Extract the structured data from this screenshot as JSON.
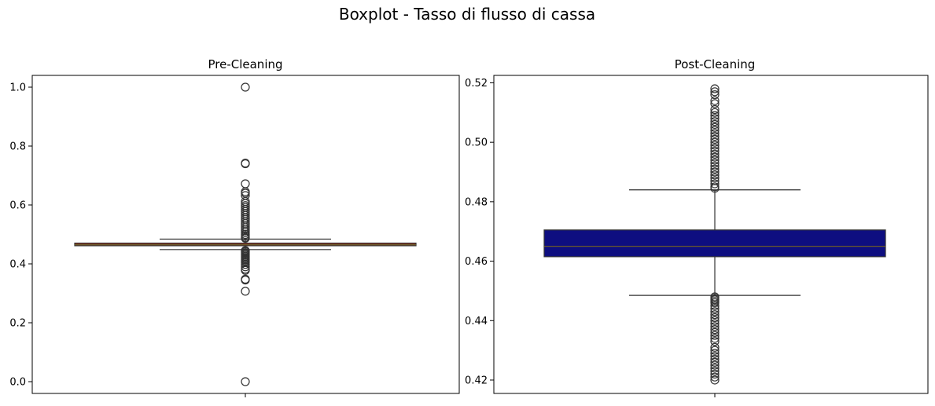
{
  "chart_data": [
    {
      "type": "boxplot",
      "title": "Pre-Cleaning",
      "ylim": [
        -0.04,
        1.04
      ],
      "yticks": [
        0.0,
        0.2,
        0.4,
        0.6,
        0.8,
        1.0
      ],
      "ytick_labels": [
        "0.0",
        "0.2",
        "0.4",
        "0.6",
        "0.8",
        "1.0"
      ],
      "box": {
        "q1": 0.4615,
        "median": 0.465,
        "q3": 0.4705,
        "whisker_low": 0.4485,
        "whisker_high": 0.484,
        "color": "#8b2d1c"
      },
      "outliers": [
        1.0,
        0.742,
        0.74,
        0.672,
        0.645,
        0.64,
        0.632,
        0.612,
        0.605,
        0.598,
        0.592,
        0.585,
        0.578,
        0.572,
        0.565,
        0.558,
        0.552,
        0.545,
        0.538,
        0.532,
        0.525,
        0.518,
        0.512,
        0.506,
        0.5,
        0.495,
        0.49,
        0.487,
        0.445,
        0.442,
        0.438,
        0.434,
        0.43,
        0.426,
        0.422,
        0.418,
        0.414,
        0.41,
        0.405,
        0.398,
        0.39,
        0.382,
        0.378,
        0.348,
        0.345,
        0.307,
        0.0
      ]
    },
    {
      "type": "boxplot",
      "title": "Post-Cleaning",
      "ylim": [
        0.4155,
        0.5225
      ],
      "yticks": [
        0.42,
        0.44,
        0.46,
        0.48,
        0.5,
        0.52
      ],
      "ytick_labels": [
        "0.42",
        "0.44",
        "0.46",
        "0.48",
        "0.50",
        "0.52"
      ],
      "box": {
        "q1": 0.4615,
        "median": 0.465,
        "q3": 0.4705,
        "whisker_low": 0.4485,
        "whisker_high": 0.484,
        "color": "#0e0e80"
      },
      "outliers": [
        0.518,
        0.517,
        0.516,
        0.514,
        0.513,
        0.511,
        0.51,
        0.509,
        0.508,
        0.507,
        0.506,
        0.505,
        0.504,
        0.503,
        0.502,
        0.501,
        0.5,
        0.499,
        0.498,
        0.497,
        0.496,
        0.495,
        0.494,
        0.493,
        0.492,
        0.491,
        0.49,
        0.489,
        0.488,
        0.487,
        0.486,
        0.485,
        0.4845,
        0.448,
        0.4475,
        0.447,
        0.4465,
        0.446,
        0.445,
        0.444,
        0.443,
        0.442,
        0.441,
        0.44,
        0.439,
        0.438,
        0.437,
        0.436,
        0.435,
        0.434,
        0.433,
        0.431,
        0.43,
        0.429,
        0.428,
        0.427,
        0.426,
        0.425,
        0.424,
        0.423,
        0.422,
        0.421,
        0.42
      ]
    }
  ],
  "figure": {
    "suptitle": "Boxplot - Tasso di flusso di cassa"
  }
}
